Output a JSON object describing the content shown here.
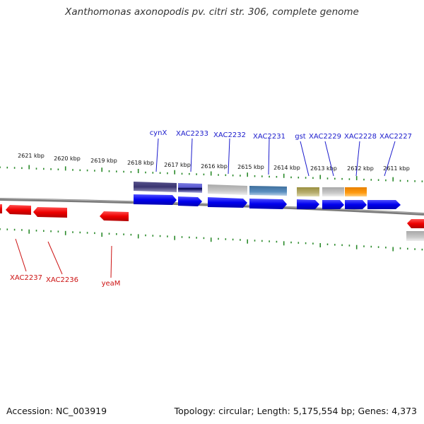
{
  "title": "Xanthomonas axonopodis pv. citri str. 306, complete genome",
  "footer": {
    "accession": "Accession: NC_003919",
    "info": "Topology: circular; Length: 5,175,554 bp; Genes: 4,373"
  },
  "colors": {
    "forward_gene": "#0000ee",
    "reverse_gene": "#ee0000",
    "tick": "#2a8a2a",
    "backbone": "#8a8a8a",
    "forward_label": "#1a1acc",
    "reverse_label": "#cc1111",
    "scale_label": "#111111"
  },
  "scale_labels": [
    "2621 kbp",
    "2620 kbp",
    "2619 kbp",
    "2618 kbp",
    "2617 kbp",
    "2616 kbp",
    "2615 kbp",
    "2614 kbp",
    "2613 kbp",
    "2612 kbp",
    "2611 kbp"
  ],
  "forward_gene_labels": [
    "cynX",
    "XAC2233",
    "XAC2232",
    "XAC2231",
    "gst",
    "XAC2229",
    "XAC2228",
    "XAC2227"
  ],
  "reverse_gene_labels": [
    "XAC2237",
    "XAC2236",
    "yeaM"
  ]
}
